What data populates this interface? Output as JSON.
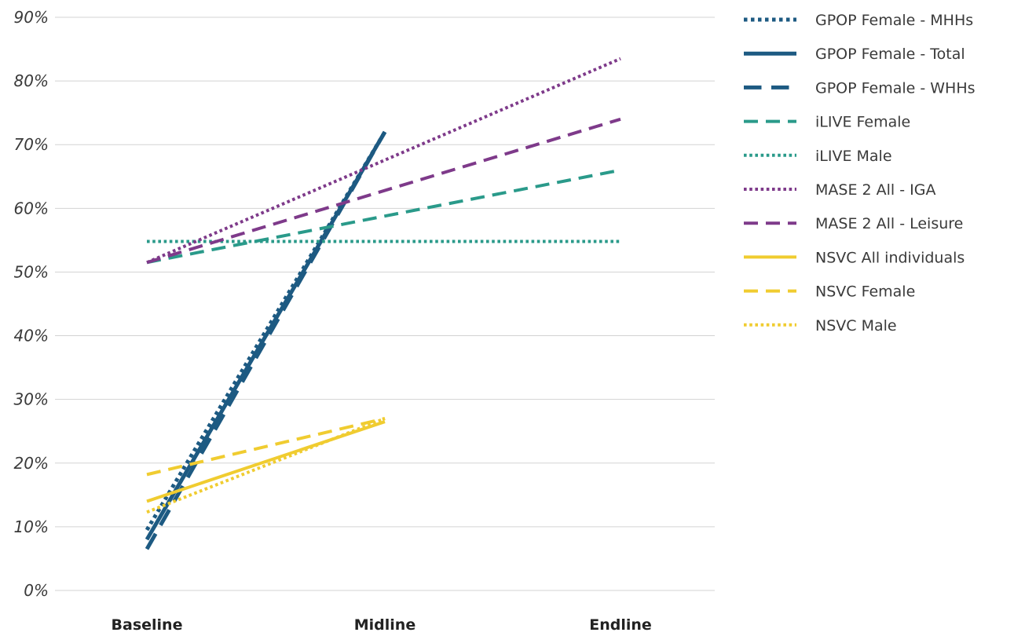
{
  "chart_data": {
    "type": "line",
    "title": "",
    "xlabel": "",
    "ylabel": "",
    "categories": [
      "Baseline",
      "Midline",
      "Endline"
    ],
    "yticks": [
      "0%",
      "10%",
      "20%",
      "30%",
      "40%",
      "50%",
      "60%",
      "70%",
      "80%",
      "90%"
    ],
    "ylim": [
      0,
      90
    ],
    "grid": true,
    "legend_position": "right",
    "series": [
      {
        "name": "GPOP Female - MHHs",
        "values": [
          9.5,
          72,
          null
        ],
        "color": "#1d5a82",
        "style": "dotted",
        "weight": "heavy"
      },
      {
        "name": "GPOP Female - Total",
        "values": [
          8,
          72,
          null
        ],
        "color": "#1d5a82",
        "style": "solid",
        "weight": "heavy"
      },
      {
        "name": "GPOP Female - WHHs",
        "values": [
          6.5,
          72,
          null
        ],
        "color": "#1d5a82",
        "style": "dashed",
        "weight": "heavy"
      },
      {
        "name": "iLIVE Female",
        "values": [
          51.5,
          null,
          66
        ],
        "color": "#2a9a8a",
        "style": "dashed",
        "weight": "normal"
      },
      {
        "name": "iLIVE Male",
        "values": [
          54.8,
          null,
          54.8
        ],
        "color": "#2a9a8a",
        "style": "dotted",
        "weight": "normal"
      },
      {
        "name": "MASE 2 All - IGA",
        "values": [
          51.5,
          null,
          83.5
        ],
        "color": "#7e3a8a",
        "style": "dotted",
        "weight": "normal"
      },
      {
        "name": "MASE 2 All - Leisure",
        "values": [
          51.5,
          null,
          74
        ],
        "color": "#7e3a8a",
        "style": "dashed",
        "weight": "normal"
      },
      {
        "name": "NSVC All individuals",
        "values": [
          14,
          26.5,
          null
        ],
        "color": "#f0cc30",
        "style": "solid",
        "weight": "normal"
      },
      {
        "name": "NSVC Female",
        "values": [
          18.2,
          27,
          null
        ],
        "color": "#f0cc30",
        "style": "dashed",
        "weight": "normal"
      },
      {
        "name": "NSVC Male",
        "values": [
          12.3,
          27,
          null
        ],
        "color": "#f0cc30",
        "style": "dotted",
        "weight": "normal"
      }
    ]
  }
}
